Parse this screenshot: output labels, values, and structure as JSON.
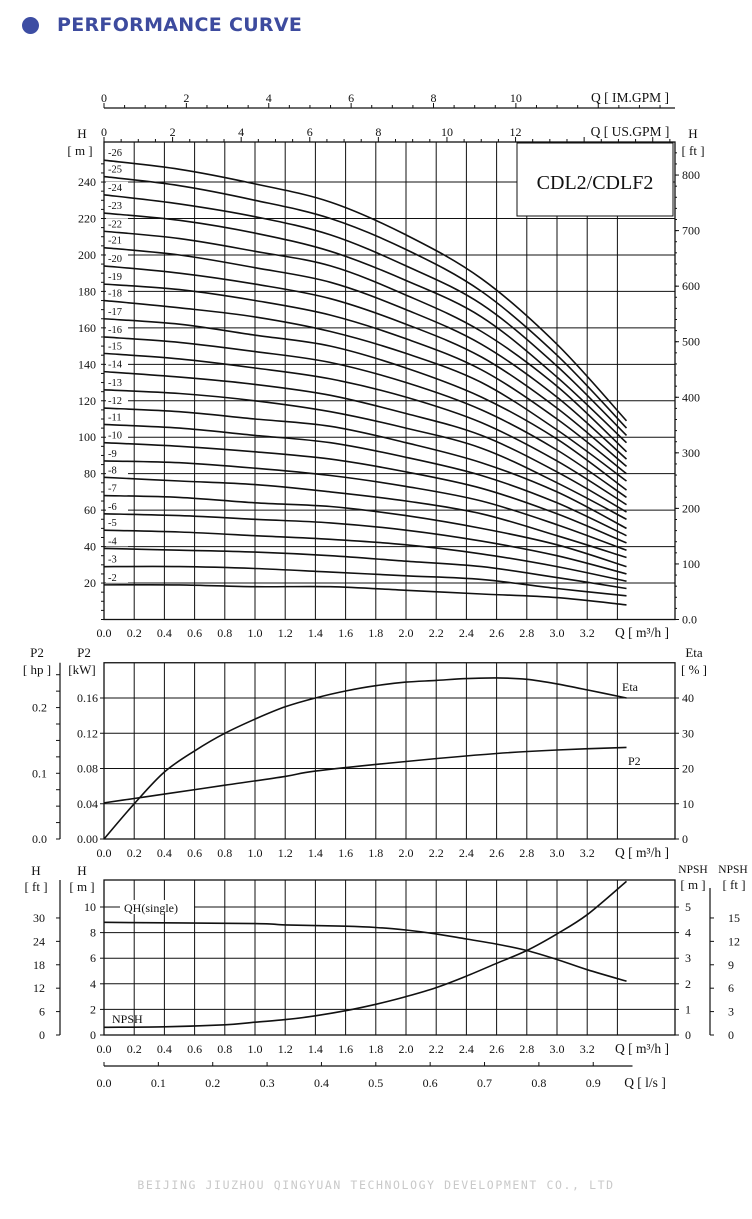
{
  "header": {
    "title": "PERFORMANCE CURVE",
    "bullet_color": "#3d4da3"
  },
  "footer": {
    "company": "BEIJING JIUZHOU QINGYUAN TECHNOLOGY DEVELOPMENT CO., LTD"
  },
  "chart_data": [
    {
      "type": "line",
      "title": "CDL2/CDLF2",
      "xlabel": "Q [ m³/h ]",
      "x_ticks": [
        "0.0",
        "0.2",
        "0.4",
        "0.6",
        "0.8",
        "1.0",
        "1.2",
        "1.4",
        "1.6",
        "1.8",
        "2.0",
        "2.2",
        "2.4",
        "2.6",
        "2.8",
        "3.0",
        "3.2"
      ],
      "top_axis_us": {
        "label": "Q [ US.GPM ]",
        "ticks": [
          "0",
          "2",
          "4",
          "6",
          "8",
          "10",
          "12"
        ]
      },
      "top_axis_im": {
        "label": "Q [ IM.GPM ]",
        "ticks": [
          "0",
          "2",
          "4",
          "6",
          "8",
          "10"
        ]
      },
      "ylabel_left": [
        "H",
        "[ m ]"
      ],
      "y_ticks_left": [
        "20",
        "40",
        "60",
        "80",
        "100",
        "120",
        "140",
        "160",
        "180",
        "200",
        "220",
        "240"
      ],
      "ylabel_right": [
        "H",
        "[ ft ]"
      ],
      "y_ticks_right": [
        "0.0",
        "100",
        "200",
        "300",
        "400",
        "500",
        "600",
        "700",
        "800"
      ],
      "grid": true,
      "x": [
        0,
        0.5,
        1.0,
        1.5,
        2.0,
        2.5,
        3.0,
        3.46
      ],
      "series": [
        {
          "name": "-2",
          "values": [
            19,
            19,
            18,
            18,
            16,
            14,
            12,
            8
          ]
        },
        {
          "name": "-3",
          "values": [
            29,
            29,
            28,
            26,
            24,
            22,
            17,
            13
          ]
        },
        {
          "name": "-4",
          "values": [
            39,
            38,
            37,
            35,
            32,
            29,
            23,
            17
          ]
        },
        {
          "name": "-5",
          "values": [
            49,
            48,
            46,
            44,
            41,
            36,
            29,
            21
          ]
        },
        {
          "name": "-6",
          "values": [
            58,
            57,
            55,
            53,
            49,
            43,
            35,
            25
          ]
        },
        {
          "name": "-7",
          "values": [
            68,
            67,
            64,
            62,
            57,
            50,
            41,
            29
          ]
        },
        {
          "name": "-8",
          "values": [
            78,
            76,
            74,
            70,
            65,
            58,
            46,
            34
          ]
        },
        {
          "name": "-9",
          "values": [
            87,
            86,
            83,
            79,
            73,
            65,
            52,
            38
          ]
        },
        {
          "name": "-10",
          "values": [
            97,
            95,
            92,
            88,
            81,
            72,
            58,
            42
          ]
        },
        {
          "name": "-11",
          "values": [
            107,
            105,
            101,
            97,
            89,
            79,
            64,
            46
          ]
        },
        {
          "name": "-12",
          "values": [
            116,
            114,
            110,
            106,
            97,
            86,
            70,
            50
          ]
        },
        {
          "name": "-13",
          "values": [
            126,
            124,
            120,
            114,
            105,
            94,
            75,
            55
          ]
        },
        {
          "name": "-14",
          "values": [
            136,
            133,
            129,
            123,
            113,
            101,
            81,
            59
          ]
        },
        {
          "name": "-15",
          "values": [
            146,
            143,
            138,
            132,
            122,
            108,
            87,
            63
          ]
        },
        {
          "name": "-16",
          "values": [
            155,
            152,
            147,
            141,
            130,
            115,
            93,
            67
          ]
        },
        {
          "name": "-17",
          "values": [
            165,
            162,
            156,
            150,
            138,
            122,
            99,
            71
          ]
        },
        {
          "name": "-18",
          "values": [
            175,
            171,
            166,
            158,
            146,
            130,
            104,
            76
          ]
        },
        {
          "name": "-19",
          "values": [
            184,
            181,
            175,
            167,
            154,
            137,
            110,
            80
          ]
        },
        {
          "name": "-20",
          "values": [
            194,
            190,
            184,
            176,
            162,
            144,
            116,
            84
          ]
        },
        {
          "name": "-21",
          "values": [
            204,
            200,
            193,
            185,
            170,
            151,
            122,
            88
          ]
        },
        {
          "name": "-22",
          "values": [
            213,
            209,
            202,
            194,
            178,
            158,
            128,
            92
          ]
        },
        {
          "name": "-23",
          "values": [
            223,
            219,
            212,
            202,
            186,
            166,
            133,
            97
          ]
        },
        {
          "name": "-24",
          "values": [
            233,
            228,
            221,
            211,
            194,
            173,
            139,
            101
          ]
        },
        {
          "name": "-25",
          "values": [
            243,
            238,
            230,
            220,
            203,
            180,
            145,
            105
          ]
        },
        {
          "name": "-26",
          "values": [
            252,
            247,
            239,
            229,
            211,
            187,
            151,
            109
          ]
        }
      ]
    },
    {
      "type": "line",
      "xlabel": "Q [ m³/h ]",
      "x_ticks": [
        "0.0",
        "0.2",
        "0.4",
        "0.6",
        "0.8",
        "1.0",
        "1.2",
        "1.4",
        "1.6",
        "1.8",
        "2.0",
        "2.2",
        "2.4",
        "2.6",
        "2.8",
        "3.0",
        "3.2"
      ],
      "ylabel_hp": [
        "P2",
        "[ hp ]"
      ],
      "y_ticks_hp": [
        "0.0",
        "0.1",
        "0.2"
      ],
      "ylabel_kw": [
        "P2",
        "[kW]"
      ],
      "y_ticks_kw": [
        "0.00",
        "0.04",
        "0.08",
        "0.12",
        "0.16"
      ],
      "ylabel_right": [
        "Eta",
        "[ % ]"
      ],
      "y_ticks_right": [
        "0",
        "10",
        "20",
        "30",
        "40"
      ],
      "grid": true,
      "series": [
        {
          "name": "Eta",
          "axis": "right",
          "x": [
            0,
            0.2,
            0.4,
            0.6,
            0.8,
            1.0,
            1.2,
            1.4,
            1.6,
            1.8,
            2.0,
            2.2,
            2.4,
            2.6,
            2.8,
            3.0,
            3.2,
            3.46
          ],
          "values": [
            0,
            10,
            19,
            25,
            30,
            34,
            37.5,
            40,
            42,
            43.5,
            44.5,
            45,
            45.5,
            45.7,
            45.3,
            44,
            42.3,
            40
          ]
        },
        {
          "name": "P2",
          "axis": "kw",
          "x": [
            0,
            0.2,
            0.4,
            0.8,
            1.2,
            1.4,
            2.0,
            2.6,
            3.0,
            3.46
          ],
          "values": [
            0.041,
            0.046,
            0.051,
            0.061,
            0.071,
            0.077,
            0.088,
            0.097,
            0.101,
            0.104
          ]
        }
      ]
    },
    {
      "type": "line",
      "xlabel": "Q [ m³/h ]",
      "x_ticks": [
        "0.0",
        "0.2",
        "0.4",
        "0.6",
        "0.8",
        "1.0",
        "1.2",
        "1.4",
        "1.6",
        "1.8",
        "2.0",
        "2.2",
        "2.4",
        "2.6",
        "2.8",
        "3.0",
        "3.2"
      ],
      "bottom_axis_ls": {
        "label": "Q [ l/s ]",
        "ticks": [
          "0.0",
          "0.1",
          "0.2",
          "0.3",
          "0.4",
          "0.5",
          "0.6",
          "0.7",
          "0.8",
          "0.9"
        ]
      },
      "ylabel_ft": [
        "H",
        "[ ft ]"
      ],
      "y_ticks_ft": [
        "0",
        "6",
        "12",
        "18",
        "24",
        "30"
      ],
      "ylabel_m": [
        "H",
        "[ m ]"
      ],
      "y_ticks_m": [
        "0",
        "2",
        "4",
        "6",
        "8",
        "10"
      ],
      "ylabel_npsh_m": [
        "NPSH",
        "[ m ]"
      ],
      "y_ticks_npsh_m": [
        "0",
        "1",
        "2",
        "3",
        "4",
        "5"
      ],
      "ylabel_npsh_ft": [
        "NPSH",
        "[ ft ]"
      ],
      "y_ticks_npsh_ft": [
        "0",
        "3",
        "6",
        "9",
        "12",
        "15"
      ],
      "grid": true,
      "series": [
        {
          "name": "QH(single)",
          "axis": "m",
          "x": [
            0,
            1.0,
            1.2,
            1.6,
            1.8,
            2.0,
            2.2,
            2.4,
            2.6,
            2.8,
            3.0,
            3.2,
            3.46
          ],
          "values": [
            8.8,
            8.7,
            8.6,
            8.5,
            8.4,
            8.2,
            7.9,
            7.5,
            7.1,
            6.6,
            5.9,
            5.1,
            4.2
          ]
        },
        {
          "name": "NPSH",
          "axis": "npsh_m",
          "x": [
            0,
            0.4,
            0.8,
            1.0,
            1.2,
            1.4,
            1.6,
            1.8,
            2.0,
            2.2,
            2.4,
            2.6,
            2.8,
            3.0,
            3.2,
            3.46
          ],
          "values": [
            0.3,
            0.32,
            0.4,
            0.5,
            0.6,
            0.75,
            0.95,
            1.2,
            1.5,
            1.85,
            2.3,
            2.8,
            3.3,
            3.95,
            4.7,
            6.0
          ]
        }
      ]
    }
  ]
}
